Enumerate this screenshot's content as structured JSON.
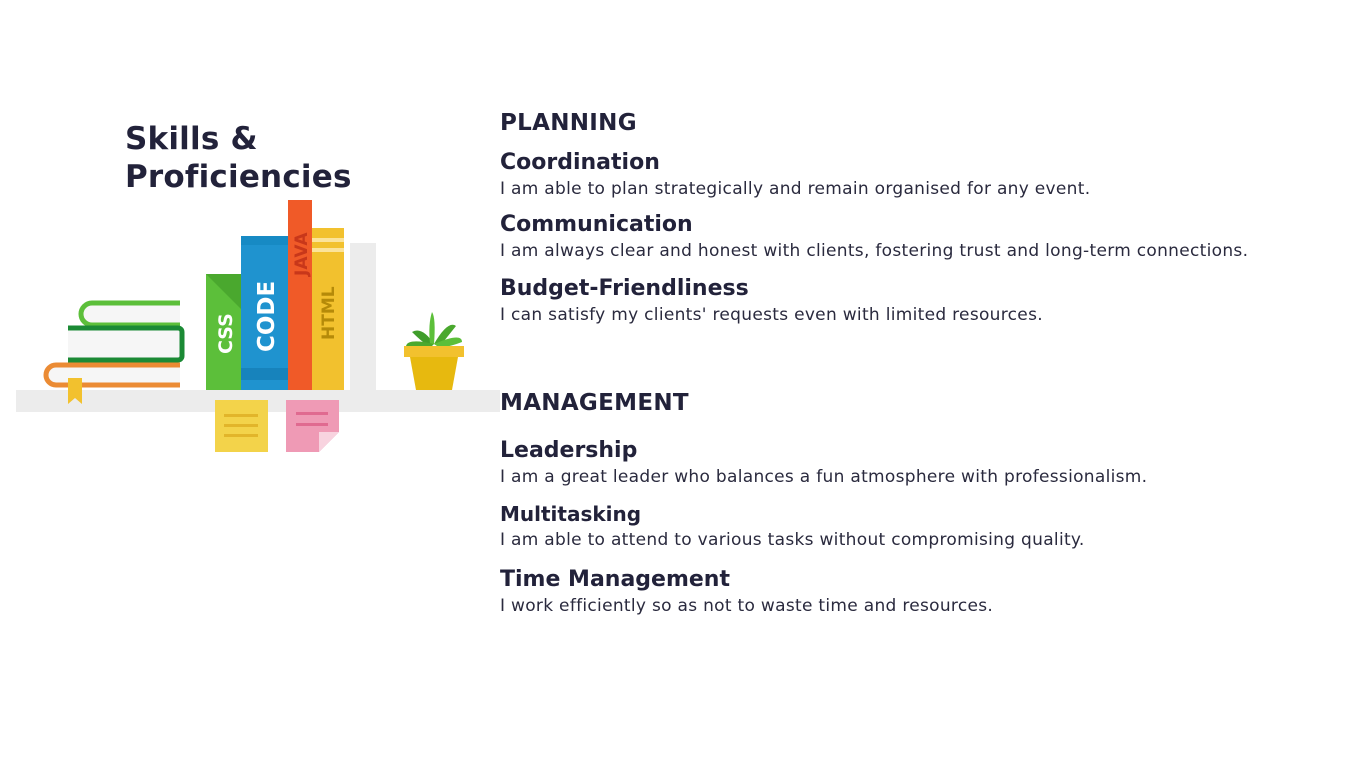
{
  "title": {
    "line1": "Skills &",
    "line2": "Proficiencies"
  },
  "illustration": {
    "book_labels": {
      "css": "CSS",
      "code": "CODE",
      "java": "JAVA",
      "html": "HTML"
    },
    "colors": {
      "shelf": "#ececec",
      "green": "#5cbf3a",
      "blue": "#1f93cf",
      "orange": "#f05a28",
      "yellow": "#f2c12e",
      "pot": "#e7b90f",
      "pink": "#ef9ab5",
      "note_yellow": "#f3d34a"
    }
  },
  "sections": [
    {
      "heading": "PLANNING",
      "skills": [
        {
          "title": "Coordination",
          "description": "I am able to plan strategically and remain organised for any event."
        },
        {
          "title": "Communication",
          "description": "I am always clear and honest with clients, fostering trust and long-term connections."
        },
        {
          "title": "Budget-Friendliness",
          "description": "I can satisfy my clients' requests even with limited resources."
        }
      ]
    },
    {
      "heading": "MANAGEMENT",
      "skills": [
        {
          "title": "Leadership",
          "description": "I am a great leader who balances a fun atmosphere with professionalism."
        },
        {
          "title": "Multitasking",
          "description": "I am able to attend to various tasks without compromising quality."
        },
        {
          "title": "Time Management",
          "description": "I work efficiently so as not to waste time and resources."
        }
      ]
    }
  ]
}
